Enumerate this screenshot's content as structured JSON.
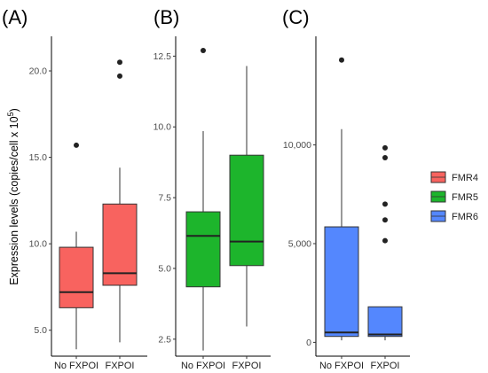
{
  "chart_data": {
    "type": "box",
    "ylabel_main": "Expression levels (copies/cell x 10",
    "ylabel_sup": "5",
    "ylabel_end": ")",
    "legend": [
      {
        "label": "FMR4",
        "color": "#F8635F"
      },
      {
        "label": "FMR5",
        "color": "#1DB52C"
      },
      {
        "label": "FMR6",
        "color": "#5487FE"
      }
    ],
    "panels": [
      {
        "label": "(A)",
        "series": "FMR4",
        "color": "#F8635F",
        "ylim": [
          3.5,
          22.0
        ],
        "ticks": [
          5.0,
          10.0,
          15.0,
          20.0
        ],
        "tick_labels": [
          "5.0",
          "10.0",
          "15.0",
          "20.0"
        ],
        "categories": [
          "No FXPOI",
          "FXPOI"
        ],
        "boxes": [
          {
            "whisker_low": 3.9,
            "q1": 6.3,
            "median": 7.2,
            "q3": 9.8,
            "whisker_high": 10.7,
            "outliers": [
              15.7
            ]
          },
          {
            "whisker_low": 4.3,
            "q1": 7.6,
            "median": 8.3,
            "q3": 12.3,
            "whisker_high": 14.4,
            "outliers": [
              19.7,
              20.5
            ]
          }
        ]
      },
      {
        "label": "(B)",
        "series": "FMR5",
        "color": "#1DB52C",
        "ylim": [
          1.9,
          13.2
        ],
        "ticks": [
          2.5,
          5.0,
          7.5,
          10.0,
          12.5
        ],
        "tick_labels": [
          "2.5",
          "5.0",
          "7.5",
          "10.0",
          "12.5"
        ],
        "categories": [
          "No FXPOI",
          "FXPOI"
        ],
        "boxes": [
          {
            "whisker_low": 2.1,
            "q1": 4.35,
            "median": 6.15,
            "q3": 7.0,
            "whisker_high": 9.85,
            "outliers": [
              12.7
            ]
          },
          {
            "whisker_low": 2.95,
            "q1": 5.1,
            "median": 5.95,
            "q3": 9.0,
            "whisker_high": 12.15,
            "outliers": []
          }
        ]
      },
      {
        "label": "(C)",
        "series": "FMR6",
        "color": "#5487FE",
        "ylim": [
          -700,
          15500
        ],
        "ticks": [
          0,
          5000,
          10000
        ],
        "tick_labels": [
          "0",
          "5,000",
          "10,000"
        ],
        "categories": [
          "No FXPOI",
          "FXPOI"
        ],
        "boxes": [
          {
            "whisker_low": 100,
            "q1": 300,
            "median": 500,
            "q3": 5850,
            "whisker_high": 10800,
            "outliers": [
              14300
            ]
          },
          {
            "whisker_low": 100,
            "q1": 300,
            "median": 400,
            "q3": 1800,
            "whisker_high": 1800,
            "outliers": [
              5150,
              6200,
              7000,
              9350,
              9850
            ]
          }
        ]
      }
    ]
  }
}
